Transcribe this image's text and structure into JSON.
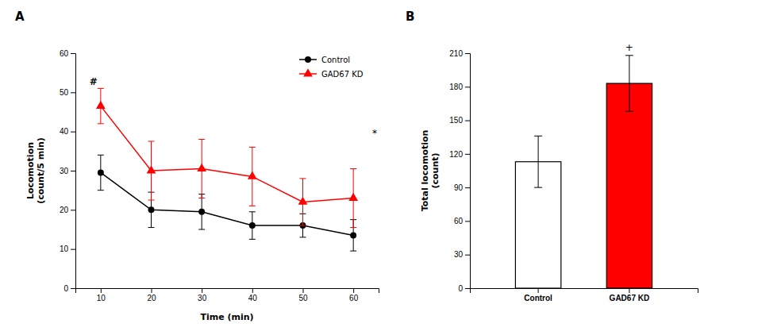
{
  "chart_data": [
    {
      "type": "line",
      "title": "A",
      "x": [
        10,
        20,
        30,
        40,
        50,
        60
      ],
      "xlim": [
        5,
        65
      ],
      "xticks": [
        10,
        20,
        30,
        40,
        50,
        60
      ],
      "ylim": [
        0,
        60
      ],
      "yticks": [
        0,
        10,
        20,
        30,
        40,
        50,
        60
      ],
      "x_label": "Time (min)",
      "y_label": "Locomotion\n(count/5 min)",
      "legend": "upper right",
      "series": [
        {
          "name": "Control",
          "color": "#000000",
          "marker": "circle",
          "values": [
            29.5,
            20.0,
            19.5,
            16.0,
            16.0,
            13.5
          ],
          "errors": [
            4.5,
            4.5,
            4.5,
            3.5,
            3.0,
            4.0
          ]
        },
        {
          "name": "GAD67 KD",
          "color": "#ff0000",
          "marker": "triangle",
          "values": [
            46.5,
            30.0,
            30.5,
            28.5,
            22.0,
            23.0
          ],
          "errors": [
            4.5,
            7.5,
            7.5,
            7.5,
            6.0,
            7.5
          ]
        }
      ],
      "annotations": [
        "*",
        "#"
      ]
    },
    {
      "type": "bar",
      "title": "B",
      "categories": [
        "Control",
        "GAD67 KD"
      ],
      "values": [
        113.0,
        183.0
      ],
      "errors": [
        23.0,
        25.0
      ],
      "colors": [
        "#ffffff",
        "#ff0000"
      ],
      "ylim": [
        0,
        210
      ],
      "yticks": [
        0,
        30,
        60,
        90,
        120,
        150,
        180,
        210
      ],
      "y_label": "Total locomotion\n(count)",
      "annotations": [
        "+"
      ]
    }
  ]
}
